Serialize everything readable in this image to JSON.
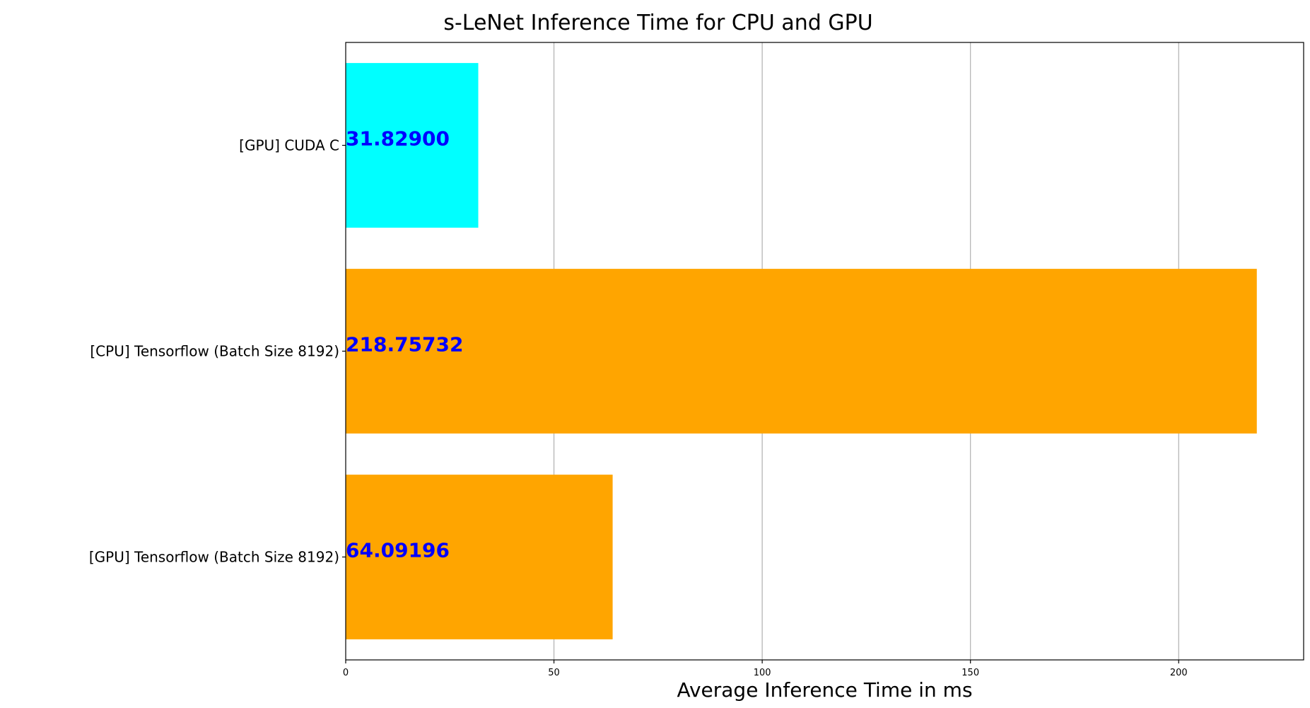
{
  "chart_data": {
    "type": "bar",
    "orientation": "horizontal",
    "title": "s-LeNet Inference Time for CPU and GPU",
    "xlabel": "Average Inference Time in ms",
    "ylabel": "",
    "xlim": [
      0,
      230
    ],
    "xticks": [
      0,
      50,
      100,
      150,
      200
    ],
    "grid": "x",
    "categories": [
      "[GPU] CUDA C",
      "[CPU] Tensorflow (Batch Size 8192)",
      "[GPU] Tensorflow (Batch Size 8192)"
    ],
    "values": [
      31.829,
      218.75732,
      64.09196
    ],
    "data_labels": [
      "31.82900",
      "218.75732",
      "64.09196"
    ],
    "bar_colors": [
      "#00ffff",
      "#ffa500",
      "#ffa500"
    ],
    "label_color": "#0000ff"
  }
}
